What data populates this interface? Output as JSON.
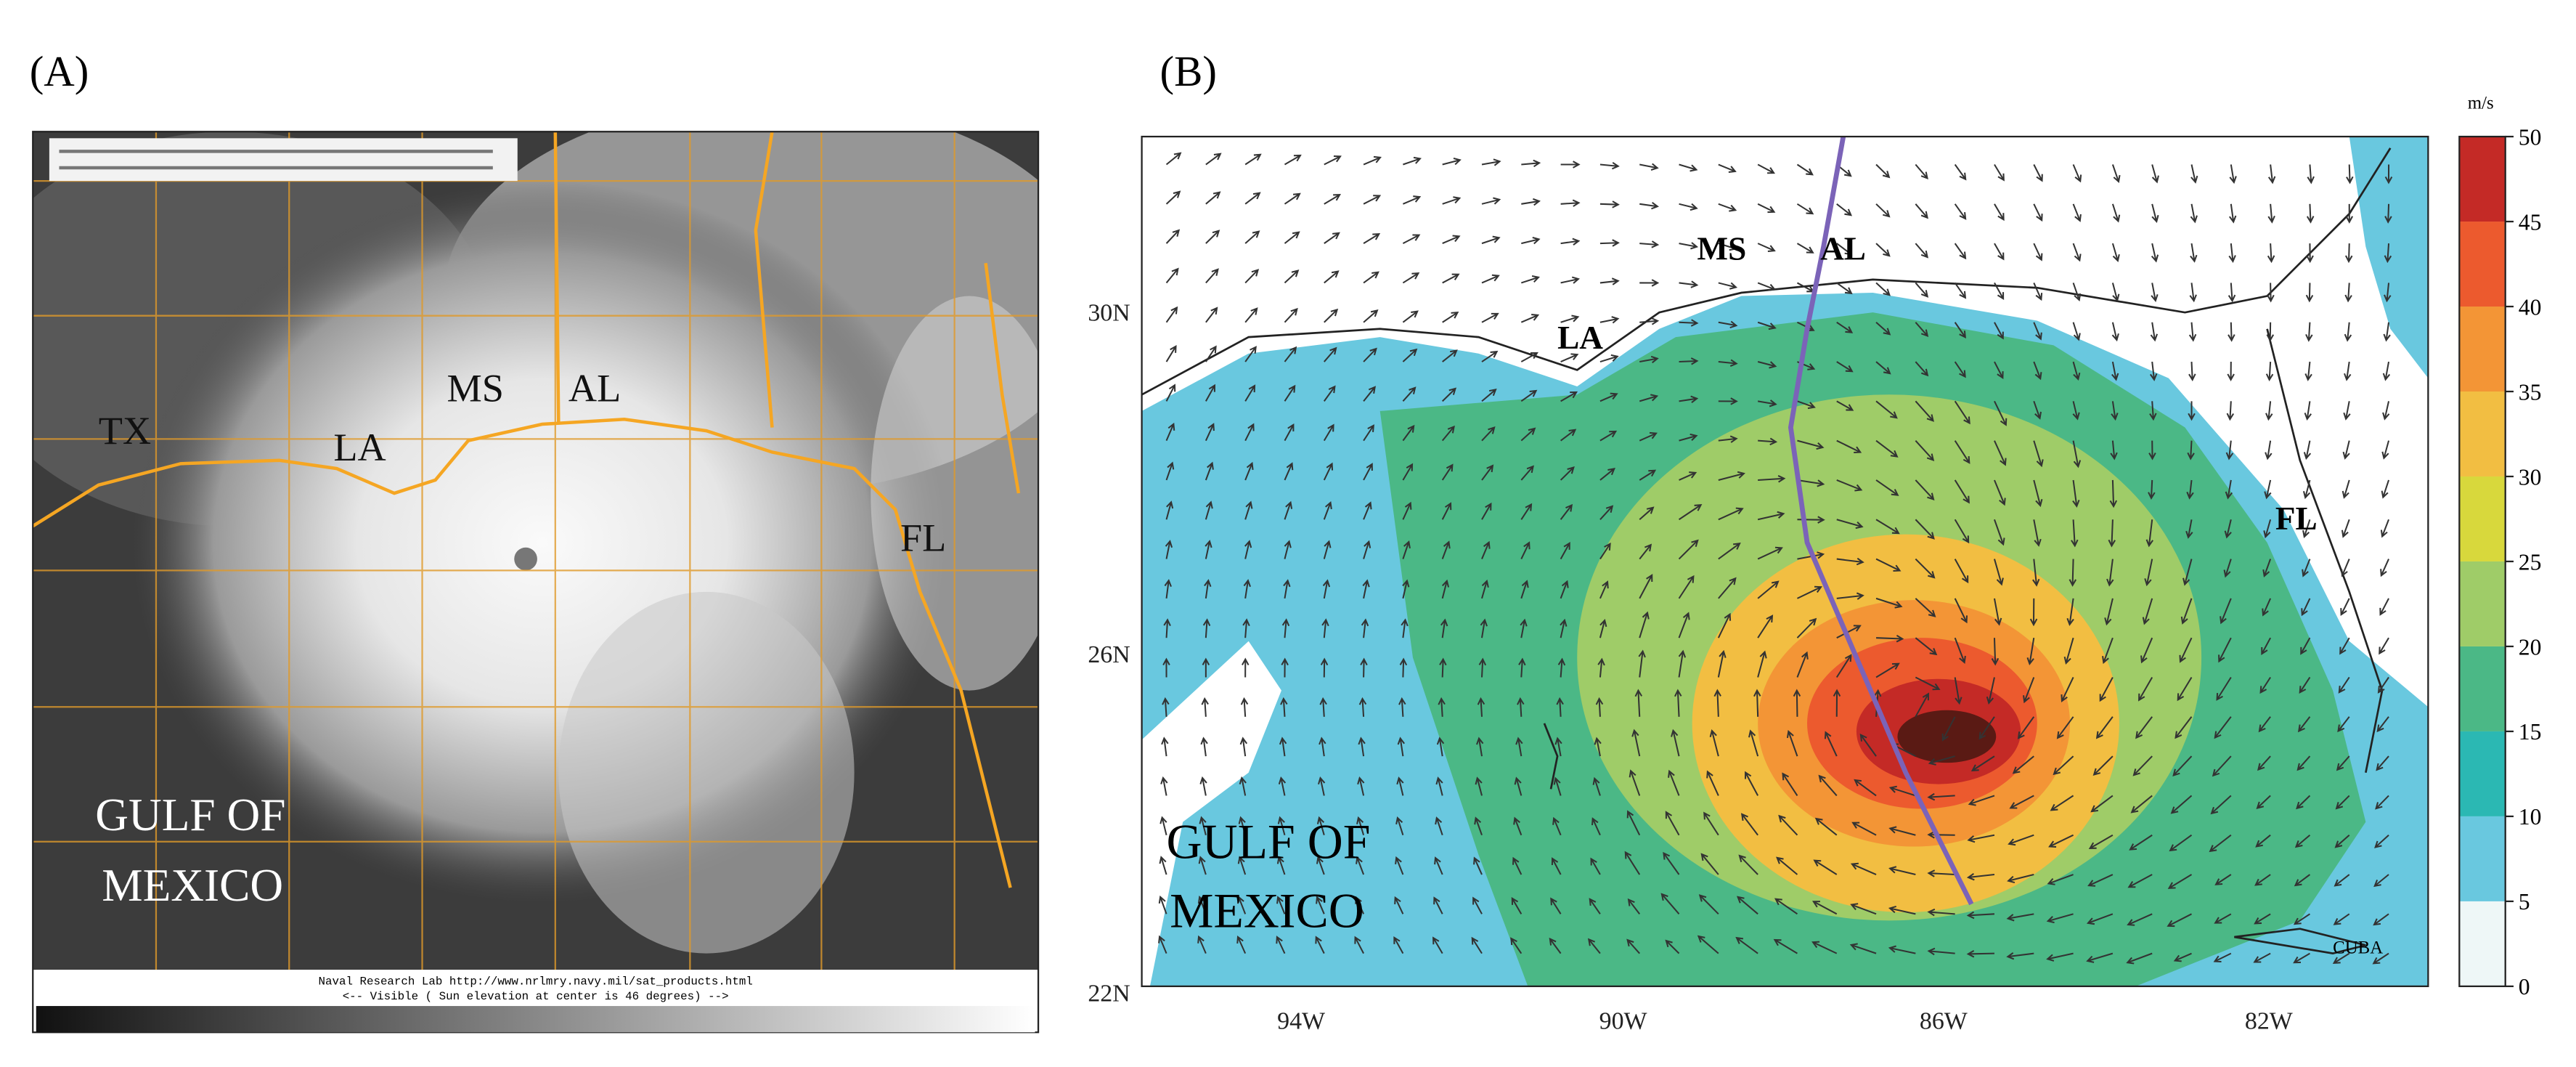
{
  "panel_a": {
    "label": "(A)",
    "places": [
      "TX",
      "LA",
      "MS",
      "AL",
      "FL"
    ],
    "region": [
      "GULF OF",
      "MEXICO"
    ],
    "caption": [
      "Naval Research Lab http://www.nrlmry.navy.mil/sat_products.html",
      "<--  Visible ( Sun elevation at center is 46 degrees)  -->"
    ]
  },
  "panel_b": {
    "label": "(B)",
    "places": [
      "MS",
      "AL",
      "LA",
      "FL",
      "CUBA"
    ],
    "region": [
      "GULF OF",
      "MEXICO"
    ],
    "lat_ticks": [
      "30N",
      "26N",
      "22N"
    ],
    "lon_ticks": [
      "94W",
      "90W",
      "86W",
      "82W"
    ],
    "colorbar": {
      "unit": "m/s",
      "ticks": [
        0,
        5,
        10,
        15,
        20,
        25,
        30,
        35,
        40,
        45,
        50
      ],
      "colors": [
        "#eef7f7",
        "#69c8df",
        "#2bb8b3",
        "#4bb886",
        "#9fcc68",
        "#d8d83c",
        "#f2be42",
        "#f39536",
        "#ec5a2e",
        "#c42a26"
      ]
    }
  }
}
